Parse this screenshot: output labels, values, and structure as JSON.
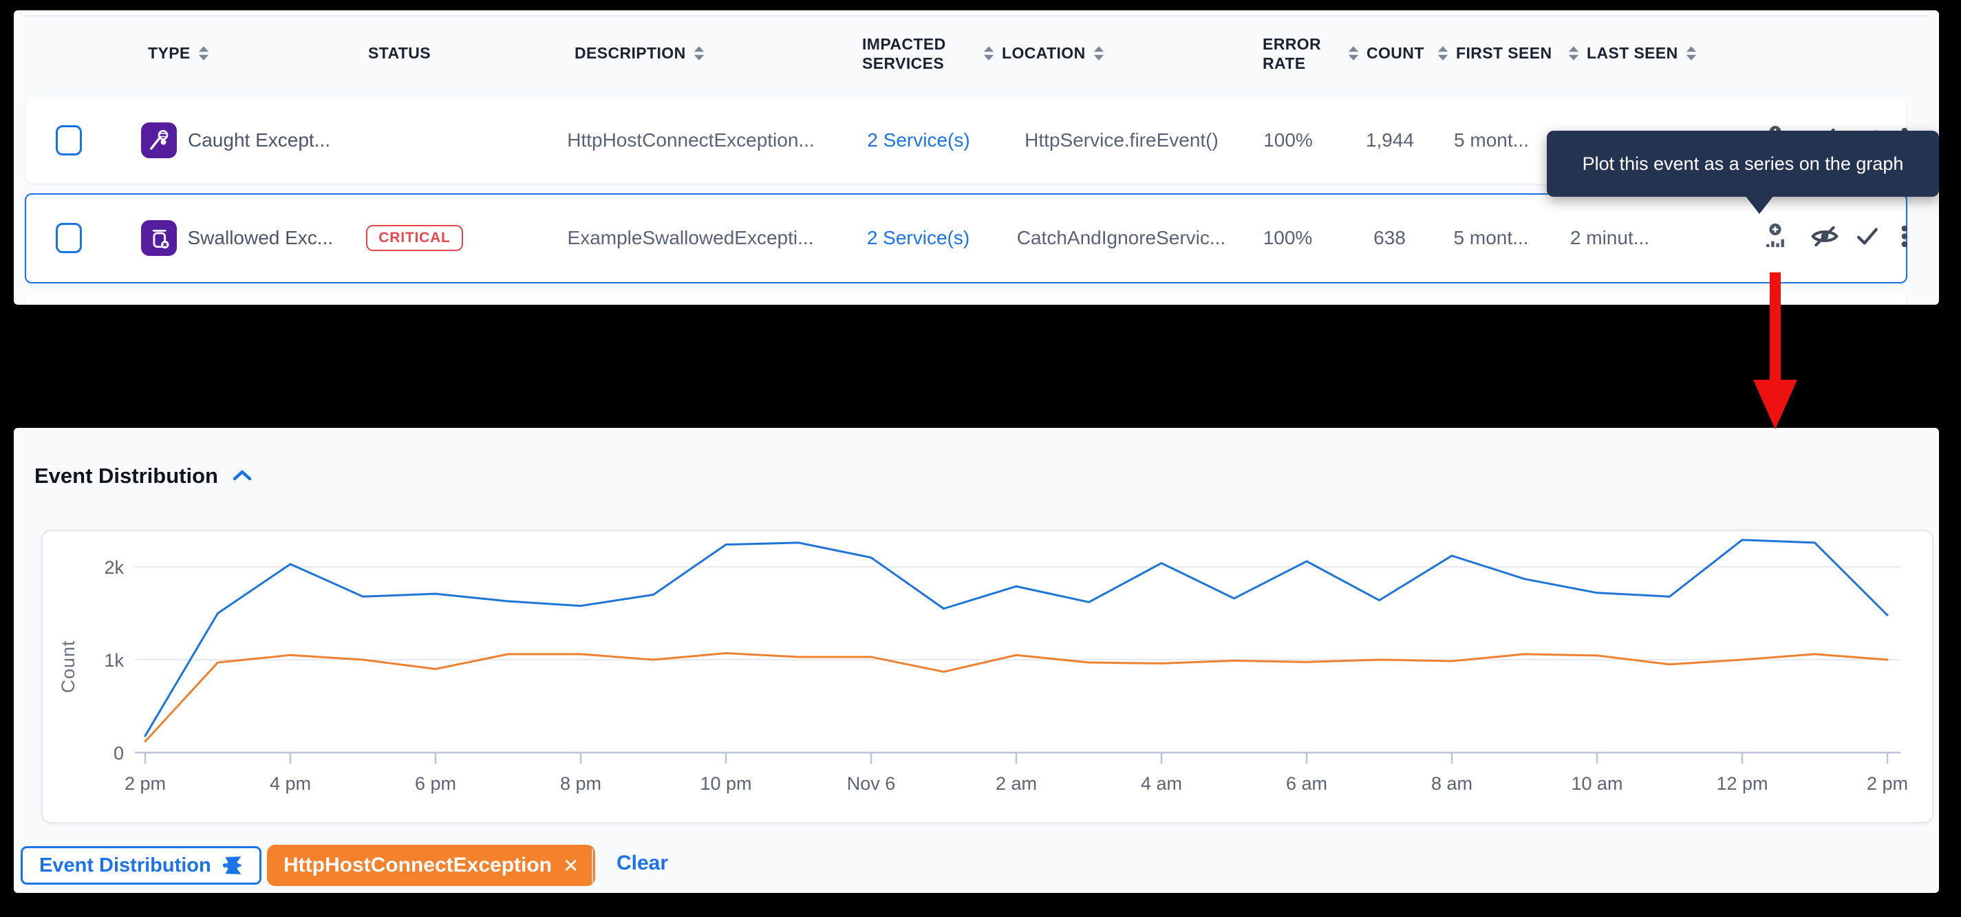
{
  "table": {
    "headers": {
      "type": "TYPE",
      "status": "STATUS",
      "description": "DESCRIPTION",
      "impacted_services_line1": "IMPACTED",
      "impacted_services_line2": "SERVICES",
      "location": "LOCATION",
      "error_rate_line1": "ERROR",
      "error_rate_line2": "RATE",
      "count": "COUNT",
      "first_seen": "FIRST SEEN",
      "last_seen": "LAST SEEN"
    },
    "rows": [
      {
        "type_label": "Caught Except...",
        "status_badge": "",
        "description": "HttpHostConnectException...",
        "impacted_services": "2 Service(s)",
        "location": "HttpService.fireEvent()",
        "error_rate": "100%",
        "count": "1,944",
        "first_seen": "5 mont...",
        "last_seen": ""
      },
      {
        "type_label": "Swallowed Exc...",
        "status_badge": "CRITICAL",
        "description": "ExampleSwallowedExcepti...",
        "impacted_services": "2 Service(s)",
        "location": "CatchAndIgnoreServic...",
        "error_rate": "100%",
        "count": "638",
        "first_seen": "5 mont...",
        "last_seen": "2 minut..."
      }
    ]
  },
  "tooltip": {
    "text": "Plot this event as a series on the graph"
  },
  "chart_section": {
    "title": "Event Distribution"
  },
  "chart_data": {
    "type": "line",
    "title": "Event Distribution",
    "ylabel": "Count",
    "x_tick_labels": [
      "2 pm",
      "4 pm",
      "6 pm",
      "8 pm",
      "10 pm",
      "Nov 6",
      "2 am",
      "4 am",
      "6 am",
      "8 am",
      "10 am",
      "12 pm",
      "2 pm"
    ],
    "y_tick_labels": [
      "0",
      "1k",
      "2k"
    ],
    "y_tick_values": [
      0,
      1000,
      2000
    ],
    "ylim": [
      0,
      2400
    ],
    "grid": "horizontal gridlines at 1k and 2k",
    "legend_position": "bottom",
    "series": [
      {
        "name": "Event Distribution",
        "color": "#1f76d8",
        "values": [
          180,
          1500,
          2030,
          1680,
          1710,
          1630,
          1580,
          1700,
          2240,
          2260,
          2100,
          1550,
          1790,
          1620,
          2040,
          1660,
          2060,
          1640,
          2120,
          1870,
          1720,
          1680,
          2290,
          2260,
          1480
        ]
      },
      {
        "name": "HttpHostConnectException",
        "color": "#ef8232",
        "values": [
          120,
          970,
          1050,
          1000,
          900,
          1060,
          1060,
          1000,
          1070,
          1030,
          1030,
          870,
          1050,
          970,
          960,
          990,
          975,
          1000,
          985,
          1060,
          1045,
          950,
          1000,
          1060,
          1000
        ]
      }
    ]
  },
  "legend": {
    "series_button": "Event Distribution",
    "chip_label": "HttpHostConnectException",
    "chip_close": "✕",
    "clear": "Clear"
  },
  "colors": {
    "accent_blue": "#1a73e8",
    "series_blue": "#1f76d8",
    "series_orange": "#ef8232",
    "chip_orange": "#f5812c",
    "critical_red": "#e5484d",
    "tooltip_bg": "#243350",
    "type_badge_purple": "#561d9e"
  }
}
